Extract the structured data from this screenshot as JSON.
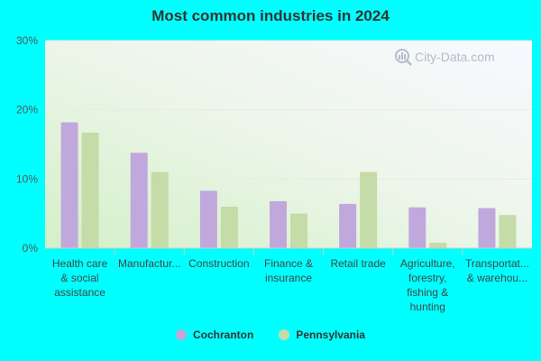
{
  "chart_data": {
    "type": "bar",
    "title": "Most common industries in 2024",
    "categories": [
      [
        "Health care",
        "& social",
        "assistance"
      ],
      [
        "Manufactur..."
      ],
      [
        "Construction"
      ],
      [
        "Finance &",
        "insurance"
      ],
      [
        "Retail trade"
      ],
      [
        "Agriculture,",
        "forestry,",
        "fishing &",
        "hunting"
      ],
      [
        "Transportat...",
        "& warehou..."
      ]
    ],
    "series": [
      {
        "name": "Cochranton",
        "color": "#c0a8dc",
        "values": [
          18.2,
          13.8,
          8.3,
          6.8,
          6.4,
          5.9,
          5.8
        ]
      },
      {
        "name": "Pennsylvania",
        "color": "#c5dba8",
        "values": [
          16.7,
          11.0,
          6.0,
          5.0,
          11.0,
          0.8,
          4.8
        ]
      }
    ],
    "ylim": [
      0,
      30
    ],
    "yticks": [
      0,
      10,
      20,
      30
    ],
    "ytick_labels": [
      "0%",
      "10%",
      "20%",
      "30%"
    ],
    "grid": true,
    "legend_position": "bottom-center",
    "watermark": "City-Data.com"
  }
}
